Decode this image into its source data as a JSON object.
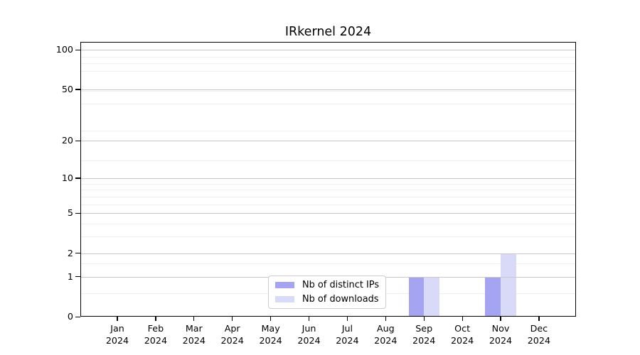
{
  "title": "IRkernel 2024",
  "chart_data": {
    "type": "bar",
    "title": "IRkernel 2024",
    "categories": [
      "Jan",
      "Feb",
      "Mar",
      "Apr",
      "May",
      "Jun",
      "Jul",
      "Aug",
      "Sep",
      "Oct",
      "Nov",
      "Dec"
    ],
    "x_year_label": "2024",
    "series": [
      {
        "name": "Nb of distinct IPs",
        "color": "#a4a4f2",
        "values": [
          0,
          0,
          0,
          0,
          0,
          0,
          0,
          0,
          1,
          0,
          1,
          0
        ]
      },
      {
        "name": "Nb of downloads",
        "color": "#d9daf8",
        "values": [
          0,
          0,
          0,
          0,
          0,
          0,
          0,
          0,
          1,
          0,
          2,
          0
        ]
      }
    ],
    "y_scale": "log1p",
    "ylim": [
      0,
      115
    ],
    "y_major_ticks": [
      0,
      1,
      2,
      5,
      10,
      20,
      50,
      100
    ],
    "y_minor_ticks": [
      0.5,
      1.5,
      3,
      4,
      6,
      7,
      8,
      9,
      14,
      24,
      39,
      49,
      69,
      79,
      89
    ],
    "grid": true,
    "legend_position": "lower center"
  },
  "colors": {
    "major_grid": "#c8c8c8",
    "minor_grid": "#efefef",
    "spine": "#000000",
    "text": "#000000",
    "legend_border": "#cccccc",
    "background": "#ffffff"
  }
}
